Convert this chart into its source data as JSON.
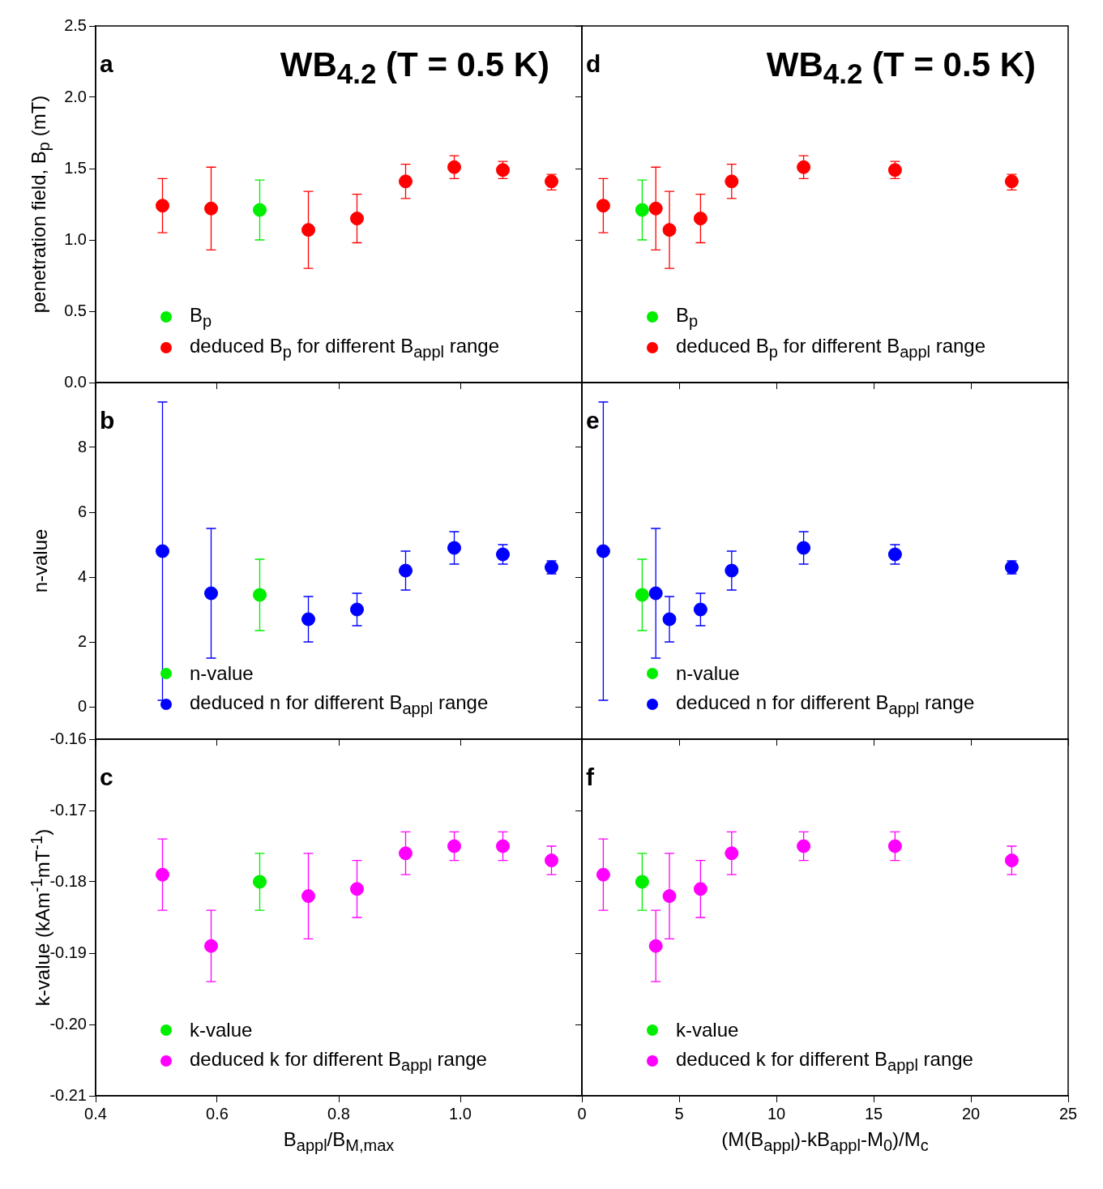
{
  "chart_data": [
    {
      "type": "scatter",
      "title": "WB$_{4.2}$ (T = 0.5 K)",
      "ylabel": "penetration field,  B$_{p}$ (mT)",
      "annotations": [
        "a"
      ],
      "xlim": [
        0.4,
        1.2
      ],
      "xticks": [
        0.4,
        0.6,
        0.8,
        1
      ],
      "ylim": [
        0,
        2.5
      ],
      "yticks": [
        {
          "value": 0,
          "label": "0.0"
        },
        0.5,
        {
          "value": 1,
          "label": "1.0"
        },
        1.5,
        {
          "value": 2,
          "label": "2.0"
        },
        2.5
      ],
      "tick_labels": "y",
      "legend": "bottom left",
      "marker": "circle",
      "series": [
        {
          "name": "B$_{p}$",
          "color": "#00ee00",
          "x": [
            0.67
          ],
          "values": [
            1.21
          ],
          "errors": [
            [
              1.0,
              1.42
            ]
          ]
        },
        {
          "name": "deduced B$_{p}$ for different B$_{appl}$ range",
          "color": "#ff0000",
          "x": [
            0.51,
            0.59,
            0.75,
            0.83,
            0.91,
            0.99,
            1.07,
            1.15
          ],
          "values": [
            1.24,
            1.22,
            1.07,
            1.15,
            1.41,
            1.51,
            1.49,
            1.41
          ],
          "errors": [
            [
              1.05,
              1.43
            ],
            [
              0.93,
              1.51
            ],
            [
              0.8,
              1.34
            ],
            [
              0.98,
              1.32
            ],
            [
              1.29,
              1.53
            ],
            [
              1.43,
              1.59
            ],
            [
              1.43,
              1.55
            ],
            [
              1.35,
              1.46
            ]
          ]
        }
      ]
    },
    {
      "type": "scatter",
      "title": "WB$_{4.2}$ (T = 0.5 K)",
      "annotations": [
        "d"
      ],
      "xlim": [
        0,
        25
      ],
      "xticks": [
        0,
        5,
        10,
        15,
        20,
        25
      ],
      "ylim": [
        0,
        2.5
      ],
      "yticks": [
        0,
        0.5,
        1,
        1.5,
        2,
        2.5
      ],
      "tick_labels": false,
      "legend": "bottom left",
      "marker": "circle",
      "series": [
        {
          "name": "B$_{p}$",
          "color": "#00ee00",
          "x": [
            3.1
          ],
          "values": [
            1.21
          ],
          "errors": [
            [
              1.0,
              1.42
            ]
          ]
        },
        {
          "name": "deduced B$_{p}$ for different B$_{appl}$ range",
          "color": "#ff0000",
          "x": [
            1.1,
            3.8,
            4.5,
            6.1,
            7.7,
            11.4,
            16.1,
            22.1
          ],
          "values": [
            1.24,
            1.22,
            1.07,
            1.15,
            1.41,
            1.51,
            1.49,
            1.41
          ],
          "errors": [
            [
              1.05,
              1.43
            ],
            [
              0.93,
              1.51
            ],
            [
              0.8,
              1.34
            ],
            [
              0.98,
              1.32
            ],
            [
              1.29,
              1.53
            ],
            [
              1.43,
              1.59
            ],
            [
              1.43,
              1.55
            ],
            [
              1.35,
              1.46
            ]
          ]
        }
      ]
    },
    {
      "type": "scatter",
      "ylabel": "n-value",
      "annotations": [
        "b"
      ],
      "xlim": [
        0.4,
        1.2
      ],
      "xticks": [
        0.4,
        0.6,
        0.8,
        1
      ],
      "ylim": [
        -1,
        10
      ],
      "yticks": [
        0,
        2,
        4,
        6,
        8
      ],
      "tick_labels": "y",
      "legend": "bottom left",
      "marker": "circle",
      "series": [
        {
          "name": "n-value",
          "color": "#00ee00",
          "x": [
            0.67
          ],
          "values": [
            3.45
          ],
          "errors": [
            [
              2.35,
              4.55
            ]
          ]
        },
        {
          "name": "deduced n for different B$_{appl}$ range",
          "color": "#0000ff",
          "x": [
            0.51,
            0.59,
            0.75,
            0.83,
            0.91,
            0.99,
            1.07,
            1.15
          ],
          "values": [
            4.8,
            3.5,
            2.7,
            3.0,
            4.2,
            4.9,
            4.7,
            4.3
          ],
          "errors": [
            [
              0.2,
              9.4
            ],
            [
              1.5,
              5.5
            ],
            [
              2.0,
              3.4
            ],
            [
              2.5,
              3.5
            ],
            [
              3.6,
              4.8
            ],
            [
              4.4,
              5.4
            ],
            [
              4.4,
              5.0
            ],
            [
              4.1,
              4.5
            ]
          ]
        }
      ]
    },
    {
      "type": "scatter",
      "annotations": [
        "e"
      ],
      "xlim": [
        0,
        25
      ],
      "xticks": [
        0,
        5,
        10,
        15,
        20,
        25
      ],
      "ylim": [
        -1,
        10
      ],
      "yticks": [
        0,
        2,
        4,
        6,
        8
      ],
      "tick_labels": false,
      "legend": "bottom left",
      "marker": "circle",
      "series": [
        {
          "name": "n-value",
          "color": "#00ee00",
          "x": [
            3.1
          ],
          "values": [
            3.45
          ],
          "errors": [
            [
              2.35,
              4.55
            ]
          ]
        },
        {
          "name": "deduced n for different B$_{appl}$ range",
          "color": "#0000ff",
          "x": [
            1.1,
            3.8,
            4.5,
            6.1,
            7.7,
            11.4,
            16.1,
            22.1
          ],
          "values": [
            4.8,
            3.5,
            2.7,
            3.0,
            4.2,
            4.9,
            4.7,
            4.3
          ],
          "errors": [
            [
              0.2,
              9.4
            ],
            [
              1.5,
              5.5
            ],
            [
              2.0,
              3.4
            ],
            [
              2.5,
              3.5
            ],
            [
              3.6,
              4.8
            ],
            [
              4.4,
              5.4
            ],
            [
              4.4,
              5.0
            ],
            [
              4.1,
              4.5
            ]
          ]
        }
      ]
    },
    {
      "type": "scatter",
      "ylabel": "k-value (kAm$^{-1}$mT$^{-1}$)",
      "xlabel": "B$_{appl}$/B$_{M,max}$",
      "annotations": [
        "c"
      ],
      "xlim": [
        0.4,
        1.2
      ],
      "xticks": [
        0.4,
        0.6,
        0.8,
        {
          "value": 1,
          "label": "1.0"
        }
      ],
      "ylim": [
        -0.21,
        -0.16
      ],
      "yticks": [
        -0.21,
        {
          "value": -0.2,
          "label": "-0.20"
        },
        -0.19,
        -0.18,
        -0.17,
        -0.16
      ],
      "legend": "bottom left",
      "marker": "circle",
      "series": [
        {
          "name": "k-value",
          "color": "#00ee00",
          "x": [
            0.67
          ],
          "values": [
            -0.18
          ],
          "errors": [
            [
              -0.184,
              -0.176
            ]
          ]
        },
        {
          "name": "deduced k for different B$_{appl}$ range",
          "color": "#ff00ff",
          "x": [
            0.51,
            0.59,
            0.75,
            0.83,
            0.91,
            0.99,
            1.07,
            1.15
          ],
          "values": [
            -0.179,
            -0.189,
            -0.182,
            -0.181,
            -0.176,
            -0.175,
            -0.175,
            -0.177
          ],
          "errors": [
            [
              -0.184,
              -0.174
            ],
            [
              -0.194,
              -0.184
            ],
            [
              -0.188,
              -0.176
            ],
            [
              -0.185,
              -0.177
            ],
            [
              -0.179,
              -0.173
            ],
            [
              -0.177,
              -0.173
            ],
            [
              -0.177,
              -0.173
            ],
            [
              -0.179,
              -0.175
            ]
          ]
        }
      ]
    },
    {
      "type": "scatter",
      "xlabel": "(M(B$_{appl}$)-kB$_{appl}$-M$_{0}$)/M$_{c}$",
      "annotations": [
        "f"
      ],
      "xlim": [
        0,
        25
      ],
      "xticks": [
        0,
        5,
        10,
        15,
        20,
        25
      ],
      "ylim": [
        -0.21,
        -0.16
      ],
      "yticks": [
        -0.21,
        -0.2,
        -0.19,
        -0.18,
        -0.17,
        -0.16
      ],
      "tick_labels": "x",
      "legend": "bottom left",
      "marker": "circle",
      "series": [
        {
          "name": "k-value",
          "color": "#00ee00",
          "x": [
            3.1
          ],
          "values": [
            -0.18
          ],
          "errors": [
            [
              -0.184,
              -0.176
            ]
          ]
        },
        {
          "name": "deduced k for different B$_{appl}$ range",
          "color": "#ff00ff",
          "x": [
            1.1,
            3.8,
            4.5,
            6.1,
            7.7,
            11.4,
            16.1,
            22.1
          ],
          "values": [
            -0.179,
            -0.189,
            -0.182,
            -0.181,
            -0.176,
            -0.175,
            -0.175,
            -0.177
          ],
          "errors": [
            [
              -0.184,
              -0.174
            ],
            [
              -0.194,
              -0.184
            ],
            [
              -0.188,
              -0.176
            ],
            [
              -0.185,
              -0.177
            ],
            [
              -0.179,
              -0.173
            ],
            [
              -0.177,
              -0.173
            ],
            [
              -0.177,
              -0.173
            ],
            [
              -0.179,
              -0.175
            ]
          ]
        }
      ]
    }
  ]
}
